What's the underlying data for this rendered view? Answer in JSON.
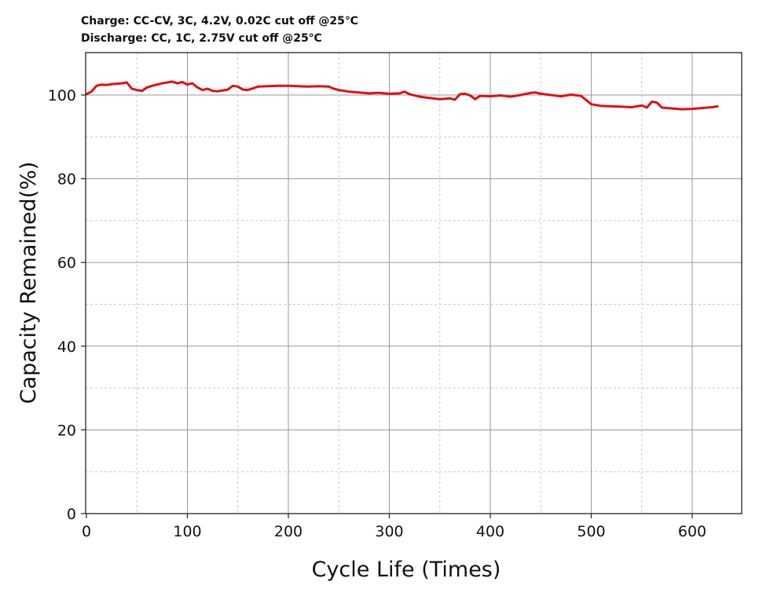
{
  "chart_data": {
    "type": "line",
    "annotations": [
      "Charge: CC-CV, 3C, 4.2V, 0.02C cut off @25℃",
      "Discharge: CC, 1C, 2.75V cut off @25℃"
    ],
    "xlabel": "Cycle Life  (Times)",
    "ylabel": "Capacity Remained(%)",
    "xlim": [
      0,
      650
    ],
    "ylim": [
      0,
      110
    ],
    "xticks": [
      0,
      100,
      200,
      300,
      400,
      500,
      600
    ],
    "yticks": [
      0,
      20,
      40,
      60,
      80,
      100
    ],
    "x_minor_grid": [
      50,
      150,
      250,
      350,
      450,
      550
    ],
    "y_minor_grid": [
      10,
      30,
      50,
      70,
      90
    ],
    "grid": true,
    "series_color": "#e01010",
    "series": [
      {
        "x": [
          0,
          5,
          10,
          15,
          20,
          25,
          30,
          35,
          40,
          45,
          50,
          55,
          60,
          65,
          70,
          75,
          80,
          85,
          90,
          95,
          100,
          105,
          110,
          115,
          120,
          125,
          130,
          140,
          145,
          150,
          155,
          160,
          170,
          180,
          190,
          200,
          210,
          220,
          230,
          240,
          245,
          250,
          260,
          270,
          280,
          290,
          300,
          310,
          315,
          320,
          330,
          340,
          350,
          360,
          365,
          370,
          375,
          380,
          385,
          390,
          400,
          410,
          420,
          430,
          440,
          445,
          450,
          460,
          470,
          480,
          490,
          500,
          510,
          520,
          530,
          540,
          550,
          555,
          560,
          565,
          570,
          580,
          590,
          600,
          610,
          620,
          625
        ],
        "y": [
          100.2,
          100.8,
          102.2,
          102.5,
          102.4,
          102.6,
          102.7,
          102.8,
          103.0,
          101.5,
          101.2,
          101.0,
          101.8,
          102.2,
          102.5,
          102.8,
          103.0,
          103.2,
          102.8,
          103.1,
          102.5,
          102.8,
          101.8,
          101.2,
          101.5,
          101.0,
          100.9,
          101.3,
          102.2,
          102.0,
          101.3,
          101.2,
          102.0,
          102.1,
          102.2,
          102.2,
          102.1,
          102.0,
          102.1,
          102.0,
          101.5,
          101.2,
          100.8,
          100.6,
          100.4,
          100.5,
          100.3,
          100.4,
          100.8,
          100.2,
          99.6,
          99.3,
          99.0,
          99.2,
          98.9,
          100.2,
          100.3,
          99.9,
          99.0,
          99.8,
          99.7,
          99.9,
          99.6,
          100.0,
          100.5,
          100.6,
          100.3,
          100.0,
          99.7,
          100.1,
          99.8,
          97.8,
          97.4,
          97.3,
          97.2,
          97.1,
          97.5,
          97.0,
          98.4,
          98.2,
          97.0,
          96.8,
          96.6,
          96.7,
          96.9,
          97.1,
          97.3
        ]
      }
    ]
  }
}
